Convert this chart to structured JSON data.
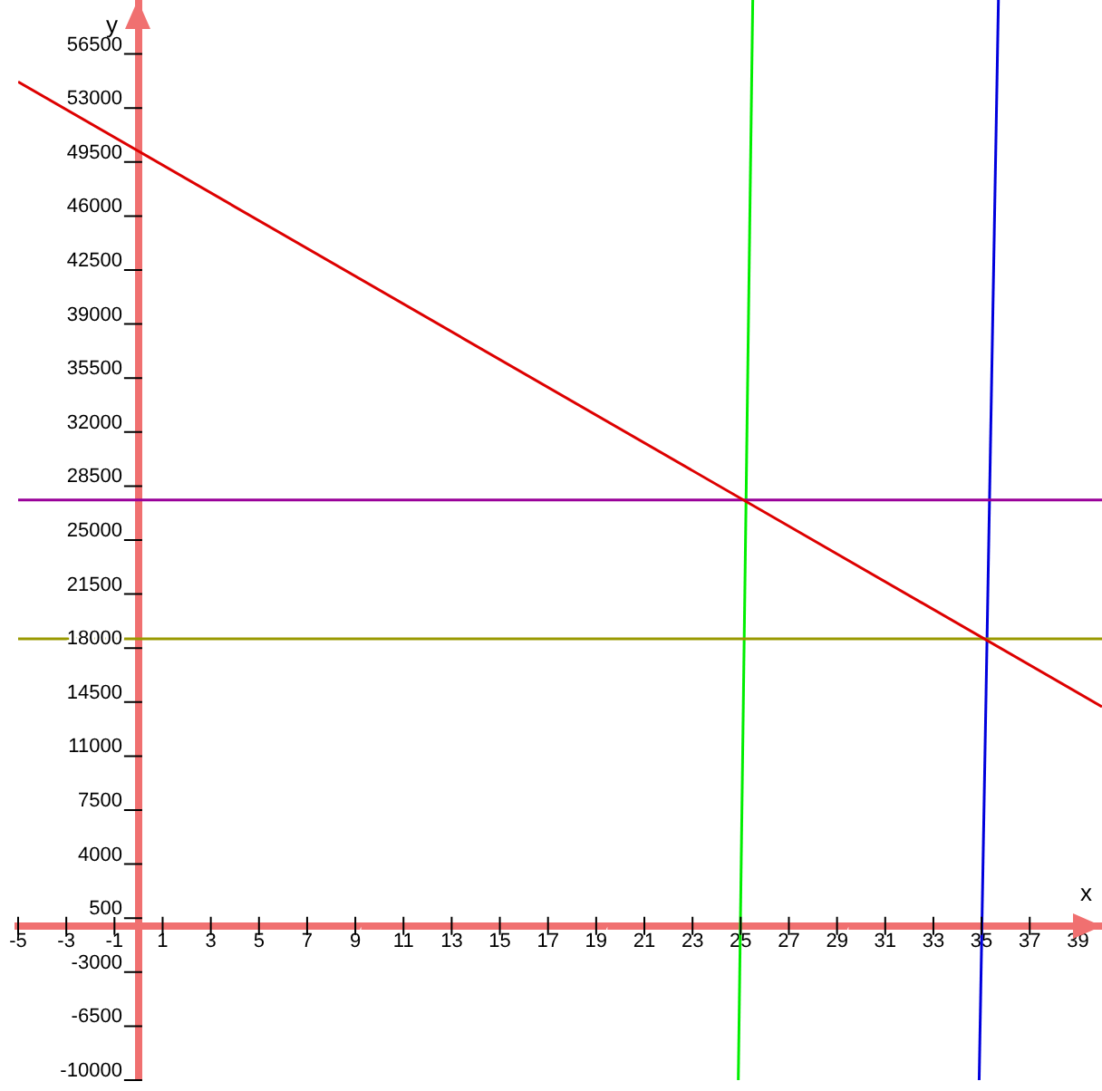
{
  "chart_data": {
    "type": "line",
    "xlabel": "x",
    "ylabel": "y",
    "xlim": [
      -5,
      40
    ],
    "ylim": [
      -10000,
      60000
    ],
    "xticks": [
      -5,
      -3,
      -1,
      1,
      3,
      5,
      7,
      9,
      11,
      13,
      15,
      17,
      19,
      21,
      23,
      25,
      27,
      29,
      31,
      33,
      35,
      37,
      39
    ],
    "yticks": [
      -10000,
      -6500,
      -3000,
      500,
      4000,
      7500,
      11000,
      14500,
      18000,
      21500,
      25000,
      28500,
      32000,
      35500,
      39000,
      42500,
      46000,
      49500,
      53000,
      56500
    ],
    "grid": false,
    "legend": false,
    "marker": "none",
    "line_style": "solid",
    "series": [
      {
        "color": "#dd0000",
        "x": [
          -5,
          40
        ],
        "values": [
          54700,
          14200
        ]
      },
      {
        "color": "#990099",
        "x": [
          -5,
          40
        ],
        "values": [
          27600,
          27600
        ]
      },
      {
        "color": "#999900",
        "x": [
          -5,
          40
        ],
        "values": [
          18600,
          18600
        ]
      },
      {
        "color": "#00ee00",
        "x": [
          24.9,
          25.5
        ],
        "values": [
          -10000,
          60000
        ]
      },
      {
        "color": "#0000dd",
        "x": [
          34.9,
          35.7
        ],
        "values": [
          -10000,
          60000
        ]
      }
    ]
  }
}
